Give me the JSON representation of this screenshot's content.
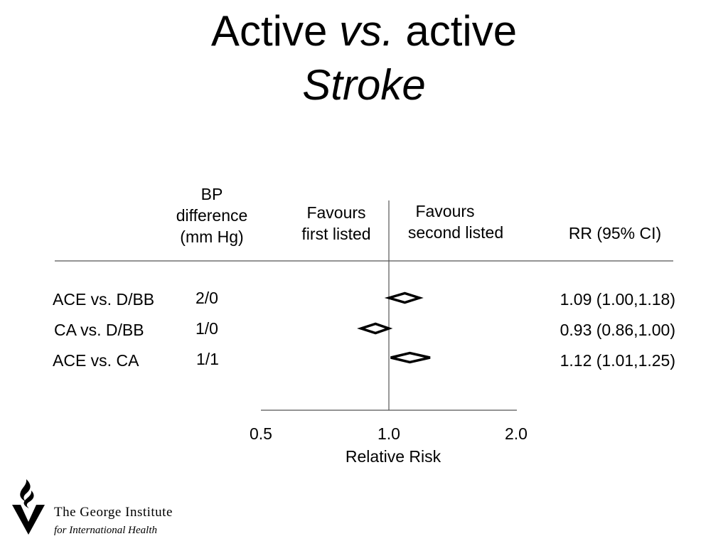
{
  "title": {
    "line1_part1": "Active ",
    "line1_part2": "vs.",
    "line1_part3": " active",
    "line2": "Stroke"
  },
  "headers": {
    "bp_line1": "BP",
    "bp_line2": "difference",
    "bp_line3": "(mm Hg)",
    "favours_first_line1": "Favours",
    "favours_first_line2": "first listed",
    "favours_second_line1": "Favours",
    "favours_second_line2": "second listed",
    "rr": "RR (95% CI)"
  },
  "chart_data": {
    "type": "forest",
    "xlabel": "Relative Risk",
    "x_scale": "log",
    "xlim": [
      0.5,
      2.0
    ],
    "xticks": [
      0.5,
      1.0,
      2.0
    ],
    "xtick_labels": [
      "0.5",
      "1.0",
      "2.0"
    ],
    "reference_line": 1.0,
    "rows": [
      {
        "label": "ACE vs. D/BB",
        "bp_difference": "2/0",
        "rr": 1.09,
        "ci_low": 1.0,
        "ci_high": 1.18,
        "rr_text": "1.09 (1.00,1.18)"
      },
      {
        "label": "CA vs. D/BB",
        "bp_difference": "1/0",
        "rr": 0.93,
        "ci_low": 0.86,
        "ci_high": 1.0,
        "rr_text": "0.93 (0.86,1.00)"
      },
      {
        "label": "ACE vs. CA",
        "bp_difference": "1/1",
        "rr": 1.12,
        "ci_low": 1.01,
        "ci_high": 1.25,
        "rr_text": "1.12 (1.01,1.25)"
      }
    ]
  },
  "logo": {
    "name": "The George Institute",
    "tagline": "for International Health"
  }
}
